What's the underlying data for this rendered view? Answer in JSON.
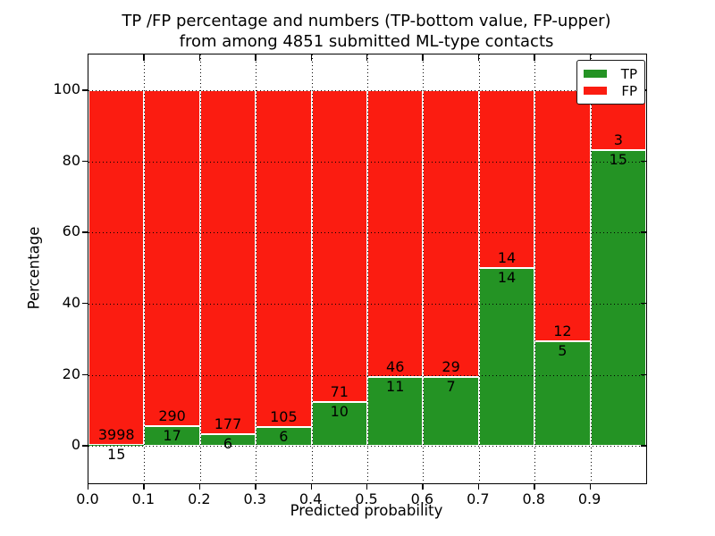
{
  "chart_data": {
    "type": "bar",
    "stacking": "percent",
    "title": "TP /FP percentage and numbers (TP-bottom value, FP-upper)",
    "subtitle": "from among 4851 submitted ML-type contacts",
    "xlabel": "Predicted probability",
    "ylabel": "Percentage",
    "xlim": [
      0.0,
      1.0
    ],
    "ylim": [
      -10.5,
      110.1
    ],
    "x_ticks": [
      "0.0",
      "0.1",
      "0.2",
      "0.3",
      "0.4",
      "0.5",
      "0.6",
      "0.7",
      "0.8",
      "0.9"
    ],
    "y_ticks": [
      0,
      20,
      40,
      60,
      80,
      100
    ],
    "grid": true,
    "bin_width": 0.1,
    "categories": [
      "0.0-0.1",
      "0.1-0.2",
      "0.2-0.3",
      "0.3-0.4",
      "0.4-0.5",
      "0.5-0.6",
      "0.6-0.7",
      "0.7-0.8",
      "0.8-0.9",
      "0.9-1.0"
    ],
    "series": [
      {
        "name": "TP",
        "color": "#249324",
        "counts": [
          15,
          17,
          6,
          6,
          10,
          11,
          7,
          14,
          5,
          15
        ]
      },
      {
        "name": "FP",
        "color": "#fb1c11",
        "counts": [
          3998,
          290,
          177,
          105,
          71,
          46,
          29,
          14,
          12,
          3
        ]
      }
    ],
    "tp_percent": [
      0.37,
      5.54,
      3.28,
      5.41,
      12.35,
      19.3,
      19.44,
      50.0,
      29.41,
      83.33
    ],
    "legend": {
      "position": "upper right",
      "entries": [
        {
          "label": "TP",
          "color": "#249324"
        },
        {
          "label": "FP",
          "color": "#fb1c11"
        }
      ]
    }
  }
}
